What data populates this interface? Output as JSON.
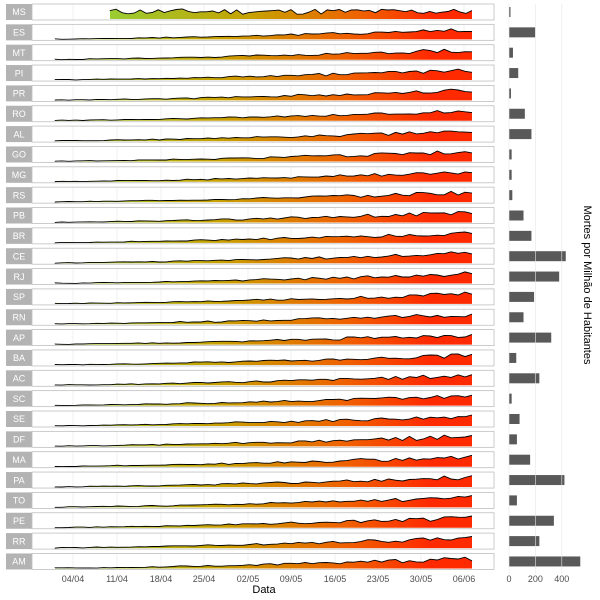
{
  "chart_data": {
    "type": "area",
    "xlabel": "Data",
    "bar_axis_label": "Mortes por Milhão de Habitantes",
    "date_ticks": [
      "04/04",
      "11/04",
      "18/04",
      "25/04",
      "02/05",
      "09/05",
      "16/05",
      "23/05",
      "30/05",
      "06/06"
    ],
    "bar_ticks": [
      "0",
      "200",
      "400"
    ],
    "bar_xlim": [
      0,
      500
    ],
    "states": [
      {
        "code": "MS",
        "deaths_per_million": 10
      },
      {
        "code": "ES",
        "deaths_per_million": 200
      },
      {
        "code": "MT",
        "deaths_per_million": 30
      },
      {
        "code": "PI",
        "deaths_per_million": 70
      },
      {
        "code": "PR",
        "deaths_per_million": 15
      },
      {
        "code": "RO",
        "deaths_per_million": 120
      },
      {
        "code": "AL",
        "deaths_per_million": 170
      },
      {
        "code": "GO",
        "deaths_per_million": 20
      },
      {
        "code": "MG",
        "deaths_per_million": 20
      },
      {
        "code": "RS",
        "deaths_per_million": 25
      },
      {
        "code": "PB",
        "deaths_per_million": 110
      },
      {
        "code": "BR",
        "deaths_per_million": 170
      },
      {
        "code": "CE",
        "deaths_per_million": 430
      },
      {
        "code": "RJ",
        "deaths_per_million": 380
      },
      {
        "code": "SP",
        "deaths_per_million": 190
      },
      {
        "code": "RN",
        "deaths_per_million": 110
      },
      {
        "code": "AP",
        "deaths_per_million": 320
      },
      {
        "code": "BA",
        "deaths_per_million": 55
      },
      {
        "code": "AC",
        "deaths_per_million": 230
      },
      {
        "code": "SC",
        "deaths_per_million": 20
      },
      {
        "code": "SE",
        "deaths_per_million": 80
      },
      {
        "code": "DF",
        "deaths_per_million": 60
      },
      {
        "code": "MA",
        "deaths_per_million": 160
      },
      {
        "code": "PA",
        "deaths_per_million": 420
      },
      {
        "code": "TO",
        "deaths_per_million": 60
      },
      {
        "code": "PE",
        "deaths_per_million": 340
      },
      {
        "code": "RR",
        "deaths_per_million": 230
      },
      {
        "code": "AM",
        "deaths_per_million": 540
      }
    ]
  }
}
